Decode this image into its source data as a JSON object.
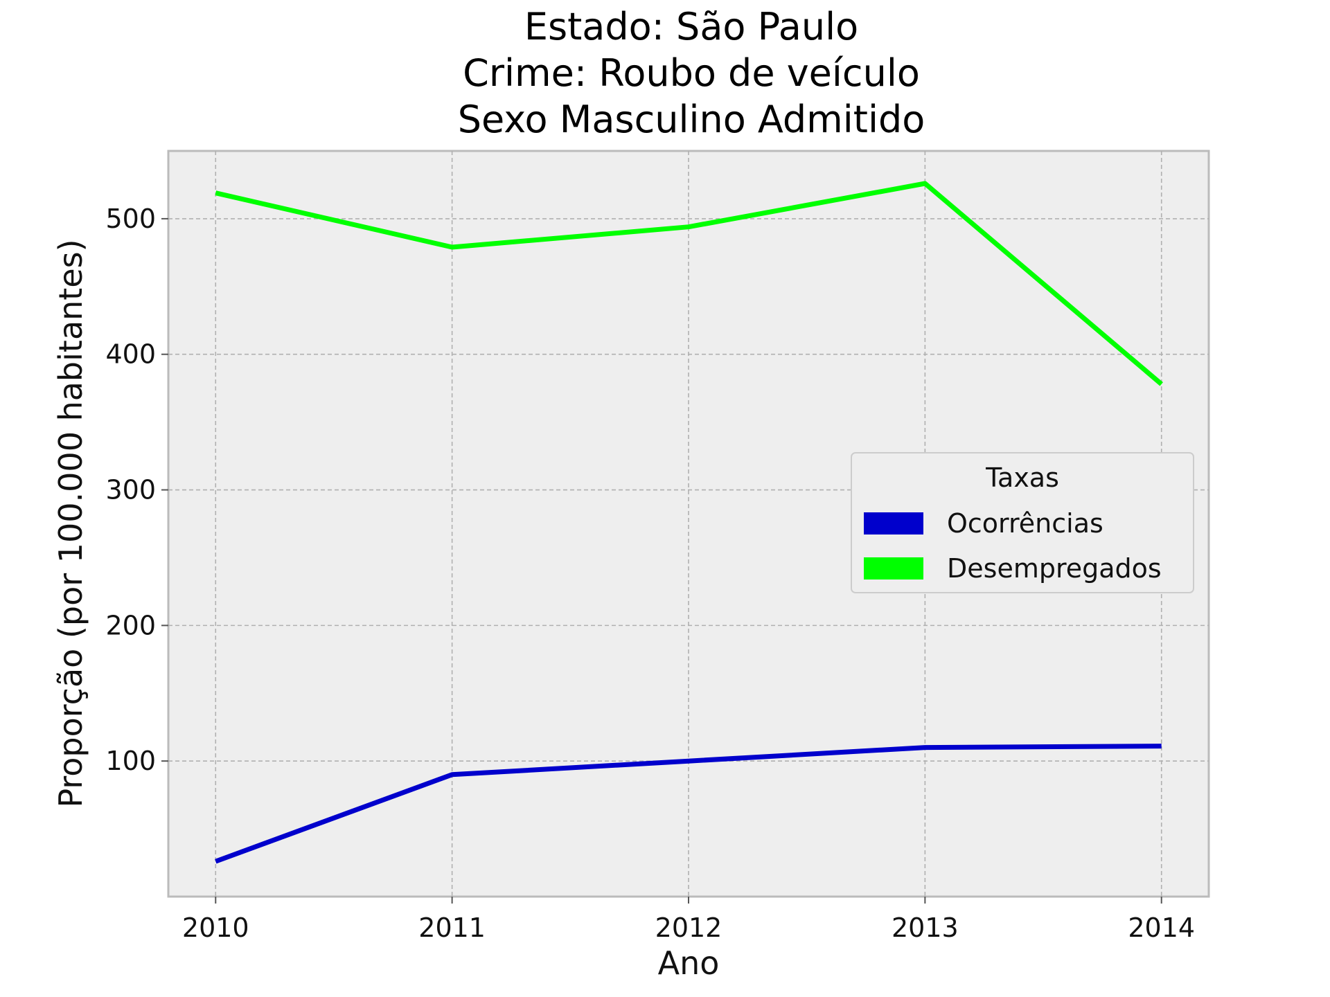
{
  "chart_data": {
    "type": "line",
    "title_lines": [
      "Estado: São Paulo",
      "Crime: Roubo de veículo",
      "Sexo  Masculino   Admitido"
    ],
    "xlabel": "Ano",
    "ylabel": "Proporção (por 100.000 habitantes)",
    "x": [
      2010,
      2011,
      2012,
      2013,
      2014
    ],
    "x_tick_labels": [
      "2010",
      "2011",
      "2012",
      "2013",
      "2014"
    ],
    "y_ticks": [
      100,
      200,
      300,
      400,
      500
    ],
    "y_tick_labels": [
      "100",
      "200",
      "300",
      "400",
      "500"
    ],
    "xlim": [
      2009.8,
      2014.2
    ],
    "ylim": [
      0,
      550
    ],
    "grid": true,
    "series": [
      {
        "name": "Ocorrências",
        "color": "#0000cc",
        "values": [
          26,
          90,
          100,
          110,
          111
        ]
      },
      {
        "name": "Desempregados",
        "color": "#00ff00",
        "values": [
          519,
          479,
          494,
          526,
          378
        ]
      }
    ],
    "legend": {
      "title": "Taxas",
      "position": "center-right"
    },
    "plot_background": "#eeeeee",
    "grid_color": "#b0b0b0"
  }
}
